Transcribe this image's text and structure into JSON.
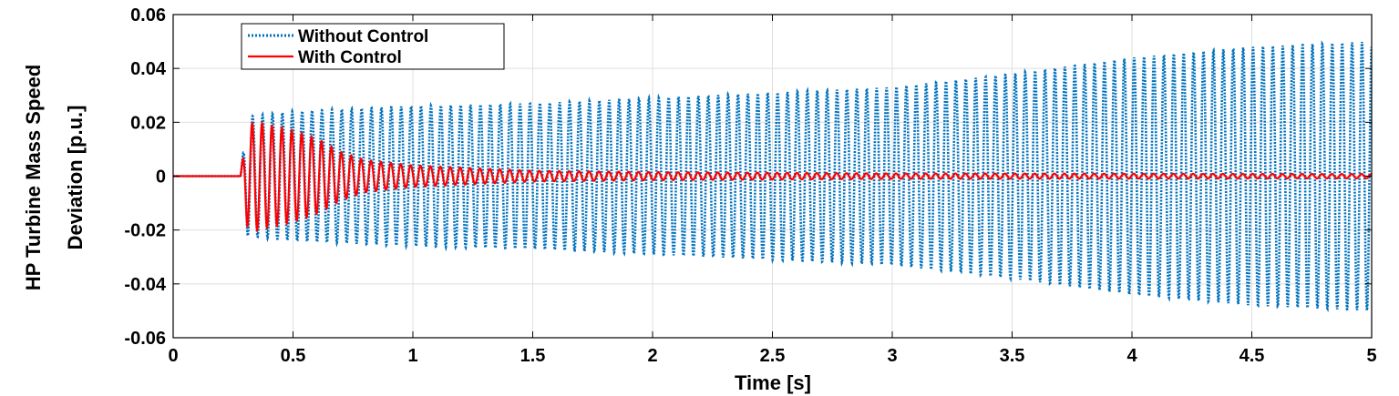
{
  "chart_data": {
    "type": "line",
    "xlabel": "Time [s]",
    "ylabel_lines": [
      "HP Turbine Mass Speed",
      "Deviation [p.u.]"
    ],
    "xlim": [
      0,
      5
    ],
    "ylim": [
      -0.06,
      0.06
    ],
    "x_ticks": [
      "0",
      "0.5",
      "1",
      "1.5",
      "2",
      "2.5",
      "3",
      "3.5",
      "4",
      "4.5",
      "5"
    ],
    "y_ticks": [
      "0.06",
      "0.04",
      "0.02",
      "0",
      "-0.02",
      "-0.04",
      "-0.06"
    ],
    "grid": true,
    "legend_position": "top-left",
    "series": [
      {
        "name": "Without Control",
        "color": "#0072BD",
        "style": "dotted",
        "disturbance_start": 0.28,
        "frequency_hz": 24.2,
        "envelope": [
          [
            0.3,
            0.022
          ],
          [
            0.5,
            0.024
          ],
          [
            1.0,
            0.026
          ],
          [
            1.5,
            0.027
          ],
          [
            2.0,
            0.029
          ],
          [
            2.5,
            0.031
          ],
          [
            3.0,
            0.033
          ],
          [
            3.5,
            0.038
          ],
          [
            4.0,
            0.044
          ],
          [
            4.5,
            0.048
          ],
          [
            5.0,
            0.05
          ]
        ]
      },
      {
        "name": "With Control",
        "color": "#FF0000",
        "style": "solid",
        "disturbance_start": 0.28,
        "frequency_hz": 24.2,
        "envelope": [
          [
            0.3,
            0.019
          ],
          [
            0.35,
            0.02
          ],
          [
            0.5,
            0.017
          ],
          [
            0.6,
            0.014
          ],
          [
            0.7,
            0.009
          ],
          [
            0.8,
            0.006
          ],
          [
            1.0,
            0.004
          ],
          [
            1.5,
            0.002
          ],
          [
            2.0,
            0.0015
          ],
          [
            3.0,
            0.001
          ],
          [
            5.0,
            0.0008
          ]
        ]
      }
    ]
  }
}
